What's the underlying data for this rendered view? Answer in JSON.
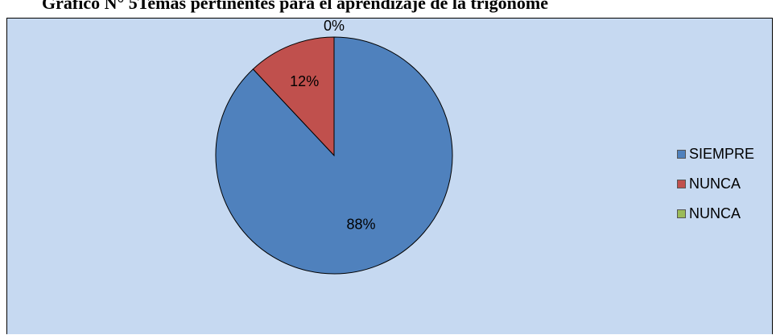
{
  "chart_data": {
    "type": "pie",
    "title": "Gráfico N° 5Temas pertinentes para el aprendizaje de la trigonome",
    "categories": [
      "SIEMPRE",
      "NUNCA",
      "NUNCA"
    ],
    "values": [
      88,
      12,
      0
    ],
    "data_labels": [
      "88%",
      "12%",
      "0%"
    ],
    "colors": [
      "#4F81BD",
      "#C0504D",
      "#9BBB59"
    ],
    "background": "#C6D9F1",
    "legend_position": "right"
  }
}
